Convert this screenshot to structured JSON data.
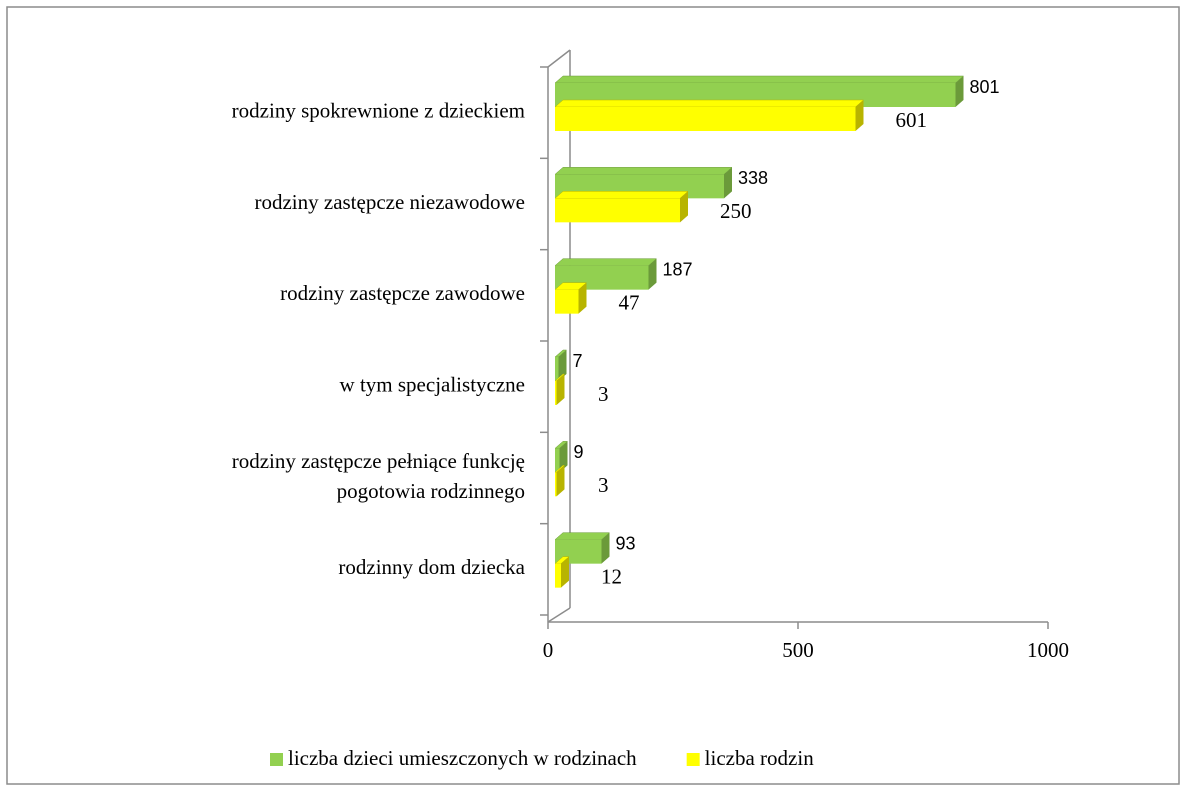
{
  "chart_data": {
    "type": "bar",
    "orientation": "horizontal",
    "three_d": true,
    "categories": [
      "rodziny spokrewnione z dzieckiem",
      "rodziny zastępcze niezawodowe",
      "rodziny zastępcze zawodowe",
      "w tym specjalistyczne",
      [
        "rodziny zastępcze pełniące funkcję",
        "pogotowia rodzinnego"
      ],
      "rodzinny dom dziecka"
    ],
    "series": [
      {
        "name": "liczba dzieci umieszczonych w rodzinach",
        "color": "#92d050",
        "side_color": "#6b9a3a",
        "values": [
          801,
          338,
          187,
          7,
          9,
          93
        ]
      },
      {
        "name": "liczba rodzin",
        "color": "#ffff00",
        "side_color": "#b8b400",
        "values": [
          601,
          250,
          47,
          3,
          3,
          12
        ]
      }
    ],
    "xlim": [
      0,
      1000
    ],
    "xticks": [
      0,
      500,
      1000
    ],
    "legend": "bottom"
  }
}
